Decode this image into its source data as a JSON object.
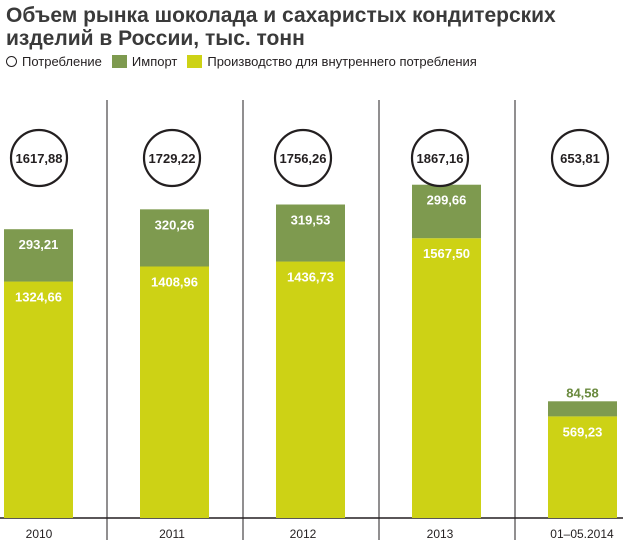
{
  "title": "Объем рынка шоколада и сахаристых кондитерских изделий в России, тыс. тонн",
  "legend": {
    "consumption": "Потребление",
    "import": "Импорт",
    "production": "Производство для внутреннего потребления"
  },
  "colors": {
    "import": "#7e9a4f",
    "production": "#cdd215",
    "text": "#231f20",
    "import_label": "#6a8a3e"
  },
  "chart_data": {
    "type": "bar",
    "stacked": true,
    "categories": [
      "2010",
      "2011",
      "2012",
      "2013",
      "01–05.2014"
    ],
    "series": [
      {
        "name": "Производство для внутреннего потребления",
        "values": [
          1324.66,
          1408.96,
          1436.73,
          1567.5,
          569.23
        ],
        "labels": [
          "1324,66",
          "1408,96",
          "1436,73",
          "1567,50",
          "569,23"
        ]
      },
      {
        "name": "Импорт",
        "values": [
          293.21,
          320.26,
          319.53,
          299.66,
          84.58
        ],
        "labels": [
          "293,21",
          "320,26",
          "319,53",
          "299,66",
          "84,58"
        ]
      }
    ],
    "totals": {
      "name": "Потребление",
      "values": [
        1617.88,
        1729.22,
        1756.26,
        1867.16,
        653.81
      ],
      "labels": [
        "1617,88",
        "1729,22",
        "1756,26",
        "1867,16",
        "653,81"
      ]
    },
    "title": "Объем рынка шоколада и сахаристых кондитерских изделий в России, тыс. тонн",
    "xlabel": "",
    "ylabel": "",
    "grid": false
  }
}
